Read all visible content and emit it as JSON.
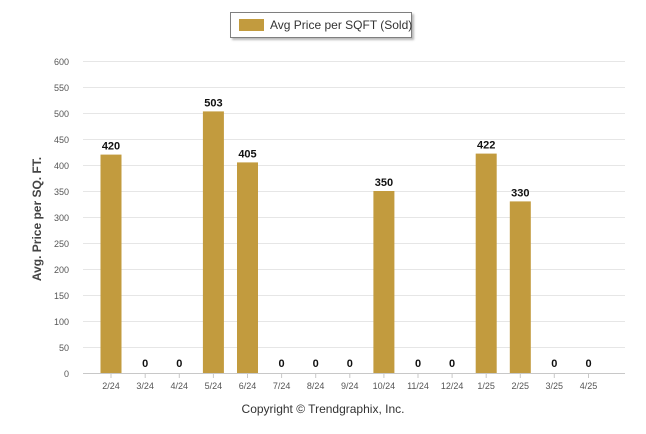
{
  "legend": {
    "label": "Avg Price per SQFT (Sold)"
  },
  "copyright": "Copyright © Trendgraphix, Inc.",
  "colors": {
    "bar": "#c29b3e",
    "grid": "#e6e6e6",
    "axis_text": "#555555"
  },
  "chart_data": {
    "type": "bar",
    "categories": [
      "2/24",
      "3/24",
      "4/24",
      "5/24",
      "6/24",
      "7/24",
      "8/24",
      "9/24",
      "10/24",
      "11/24",
      "12/24",
      "1/25",
      "2/25",
      "3/25",
      "4/25"
    ],
    "series": [
      {
        "name": "Avg Price per SQFT (Sold)",
        "values": [
          420,
          0,
          0,
          503,
          405,
          0,
          0,
          0,
          350,
          0,
          0,
          422,
          330,
          0,
          0
        ]
      }
    ],
    "data_labels": [
      "420",
      "0",
      "0",
      "503",
      "405",
      "0",
      "0",
      "0",
      "350",
      "0",
      "0",
      "422",
      "330",
      "0",
      "0"
    ],
    "xlabel": "",
    "ylabel": "Avg. Price per SQ. FT.",
    "ylim": [
      0,
      600
    ],
    "yticks": [
      0,
      50,
      100,
      150,
      200,
      250,
      300,
      350,
      400,
      450,
      500,
      550,
      600
    ],
    "grid": true,
    "legend_position": "top-center"
  }
}
